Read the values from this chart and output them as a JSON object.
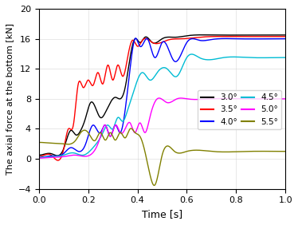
{
  "title": "",
  "xlabel": "Time [s]",
  "ylabel": "The axial force at the bottom [kN]",
  "xlim": [
    0.0,
    1.0
  ],
  "ylim": [
    -4,
    20
  ],
  "yticks": [
    -4,
    0,
    4,
    8,
    12,
    16,
    20
  ],
  "xticks": [
    0.0,
    0.2,
    0.4,
    0.6,
    0.8,
    1.0
  ],
  "legend_labels": [
    "3.0°",
    "3.5°",
    "4.0°",
    "4.5°",
    "5.0°",
    "5.5°"
  ],
  "colors": [
    "black",
    "red",
    "blue",
    "#00bcd4",
    "magenta",
    "#808000"
  ],
  "figsize": [
    3.74,
    2.82
  ],
  "dpi": 100,
  "curve_30": {
    "t": [
      0.0,
      0.05,
      0.1,
      0.13,
      0.15,
      0.17,
      0.19,
      0.21,
      0.23,
      0.25,
      0.27,
      0.29,
      0.31,
      0.33,
      0.35,
      0.37,
      0.39,
      0.41,
      0.43,
      0.46,
      0.5,
      0.55,
      0.6,
      0.7,
      0.85,
      1.0
    ],
    "y": [
      0.5,
      0.7,
      1.3,
      3.8,
      3.2,
      3.8,
      5.5,
      7.5,
      6.8,
      5.5,
      6.2,
      7.5,
      8.2,
      8.0,
      9.5,
      13.5,
      16.0,
      15.5,
      16.2,
      15.5,
      16.0,
      16.2,
      16.4,
      16.5,
      16.5,
      16.5
    ]
  },
  "curve_35": {
    "t": [
      0.0,
      0.05,
      0.1,
      0.12,
      0.14,
      0.16,
      0.18,
      0.2,
      0.22,
      0.24,
      0.26,
      0.28,
      0.3,
      0.32,
      0.34,
      0.36,
      0.38,
      0.4,
      0.42,
      0.46,
      0.52,
      0.58,
      0.65,
      0.8,
      1.0
    ],
    "y": [
      0.3,
      0.5,
      1.2,
      4.0,
      4.5,
      10.0,
      9.5,
      10.5,
      9.8,
      11.5,
      10.0,
      12.5,
      10.5,
      12.5,
      11.0,
      13.5,
      15.8,
      15.0,
      15.8,
      15.5,
      15.8,
      16.0,
      16.2,
      16.3,
      16.3
    ]
  },
  "curve_40": {
    "t": [
      0.0,
      0.05,
      0.1,
      0.13,
      0.16,
      0.19,
      0.22,
      0.25,
      0.27,
      0.29,
      0.31,
      0.33,
      0.35,
      0.37,
      0.39,
      0.41,
      0.44,
      0.47,
      0.5,
      0.55,
      0.6,
      0.65,
      0.7,
      0.8,
      1.0
    ],
    "y": [
      0.2,
      0.4,
      0.7,
      1.5,
      1.0,
      2.0,
      4.5,
      3.5,
      4.5,
      3.0,
      4.5,
      3.5,
      6.5,
      12.0,
      16.0,
      15.0,
      16.0,
      13.5,
      15.5,
      13.0,
      15.5,
      15.8,
      15.9,
      16.0,
      16.0
    ]
  },
  "curve_45": {
    "t": [
      0.0,
      0.05,
      0.1,
      0.14,
      0.18,
      0.22,
      0.26,
      0.28,
      0.3,
      0.32,
      0.34,
      0.36,
      0.38,
      0.4,
      0.42,
      0.45,
      0.48,
      0.52,
      0.56,
      0.6,
      0.65,
      0.75,
      0.85,
      1.0
    ],
    "y": [
      0.2,
      0.3,
      0.5,
      0.8,
      0.5,
      1.5,
      3.5,
      4.5,
      4.0,
      5.5,
      5.0,
      6.5,
      8.5,
      10.5,
      11.5,
      10.5,
      11.5,
      12.0,
      11.0,
      13.5,
      13.5,
      13.5,
      13.5,
      13.5
    ]
  },
  "curve_50": {
    "t": [
      0.0,
      0.05,
      0.1,
      0.15,
      0.2,
      0.25,
      0.27,
      0.29,
      0.31,
      0.33,
      0.35,
      0.37,
      0.39,
      0.41,
      0.43,
      0.45,
      0.48,
      0.52,
      0.56,
      0.6,
      0.7,
      0.85,
      1.0
    ],
    "y": [
      0.1,
      0.2,
      0.3,
      0.5,
      0.4,
      3.0,
      4.5,
      3.0,
      4.5,
      3.5,
      4.0,
      4.8,
      3.5,
      4.8,
      3.5,
      5.5,
      8.0,
      7.5,
      8.0,
      8.0,
      8.0,
      8.0,
      8.0
    ]
  },
  "curve_55": {
    "t": [
      0.0,
      0.05,
      0.1,
      0.13,
      0.15,
      0.17,
      0.2,
      0.23,
      0.25,
      0.27,
      0.29,
      0.31,
      0.33,
      0.35,
      0.37,
      0.39,
      0.41,
      0.43,
      0.45,
      0.47,
      0.5,
      0.55,
      0.6,
      0.7,
      0.85,
      1.0
    ],
    "y": [
      2.2,
      2.1,
      2.0,
      2.0,
      2.5,
      3.5,
      3.5,
      2.5,
      3.5,
      2.5,
      3.5,
      2.5,
      3.5,
      2.8,
      4.0,
      3.5,
      3.0,
      1.0,
      -2.0,
      -3.5,
      0.5,
      1.0,
      1.0,
      1.0,
      1.0,
      1.0
    ]
  }
}
